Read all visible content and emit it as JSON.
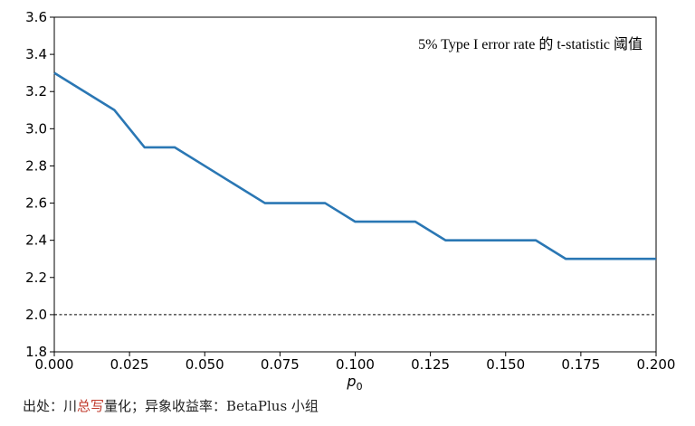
{
  "chart_data": {
    "type": "line",
    "annotation": "5% Type I error rate 的 t-statistic 阈值",
    "xlabel": "p",
    "xlabel_sub": "0",
    "ylabel": "",
    "xlim": [
      0.0,
      0.2
    ],
    "ylim": [
      1.8,
      3.6
    ],
    "xticks": [
      "0.000",
      "0.025",
      "0.050",
      "0.075",
      "0.100",
      "0.125",
      "0.150",
      "0.175",
      "0.200"
    ],
    "yticks": [
      "1.8",
      "2.0",
      "2.2",
      "2.4",
      "2.6",
      "2.8",
      "3.0",
      "3.2",
      "3.4",
      "3.6"
    ],
    "grid": false,
    "line_color": "#2a77b4",
    "series": [
      {
        "x": [
          0.0,
          0.02,
          0.03,
          0.04,
          0.05,
          0.06,
          0.07,
          0.08,
          0.09,
          0.1,
          0.11,
          0.12,
          0.13,
          0.14,
          0.15,
          0.16,
          0.17,
          0.18,
          0.19,
          0.2
        ],
        "y": [
          3.3,
          3.1,
          2.9,
          2.9,
          2.8,
          2.7,
          2.6,
          2.6,
          2.6,
          2.5,
          2.5,
          2.5,
          2.4,
          2.4,
          2.4,
          2.4,
          2.3,
          2.3,
          2.3,
          2.3
        ]
      }
    ],
    "reference_line": {
      "y": 2.0,
      "style": "dashed",
      "color": "#000000"
    }
  },
  "caption": {
    "prefix": "出处：",
    "author_a": "川",
    "author_b": "总写",
    "suffix": "量化；异象收益率：BetaPlus 小组"
  }
}
